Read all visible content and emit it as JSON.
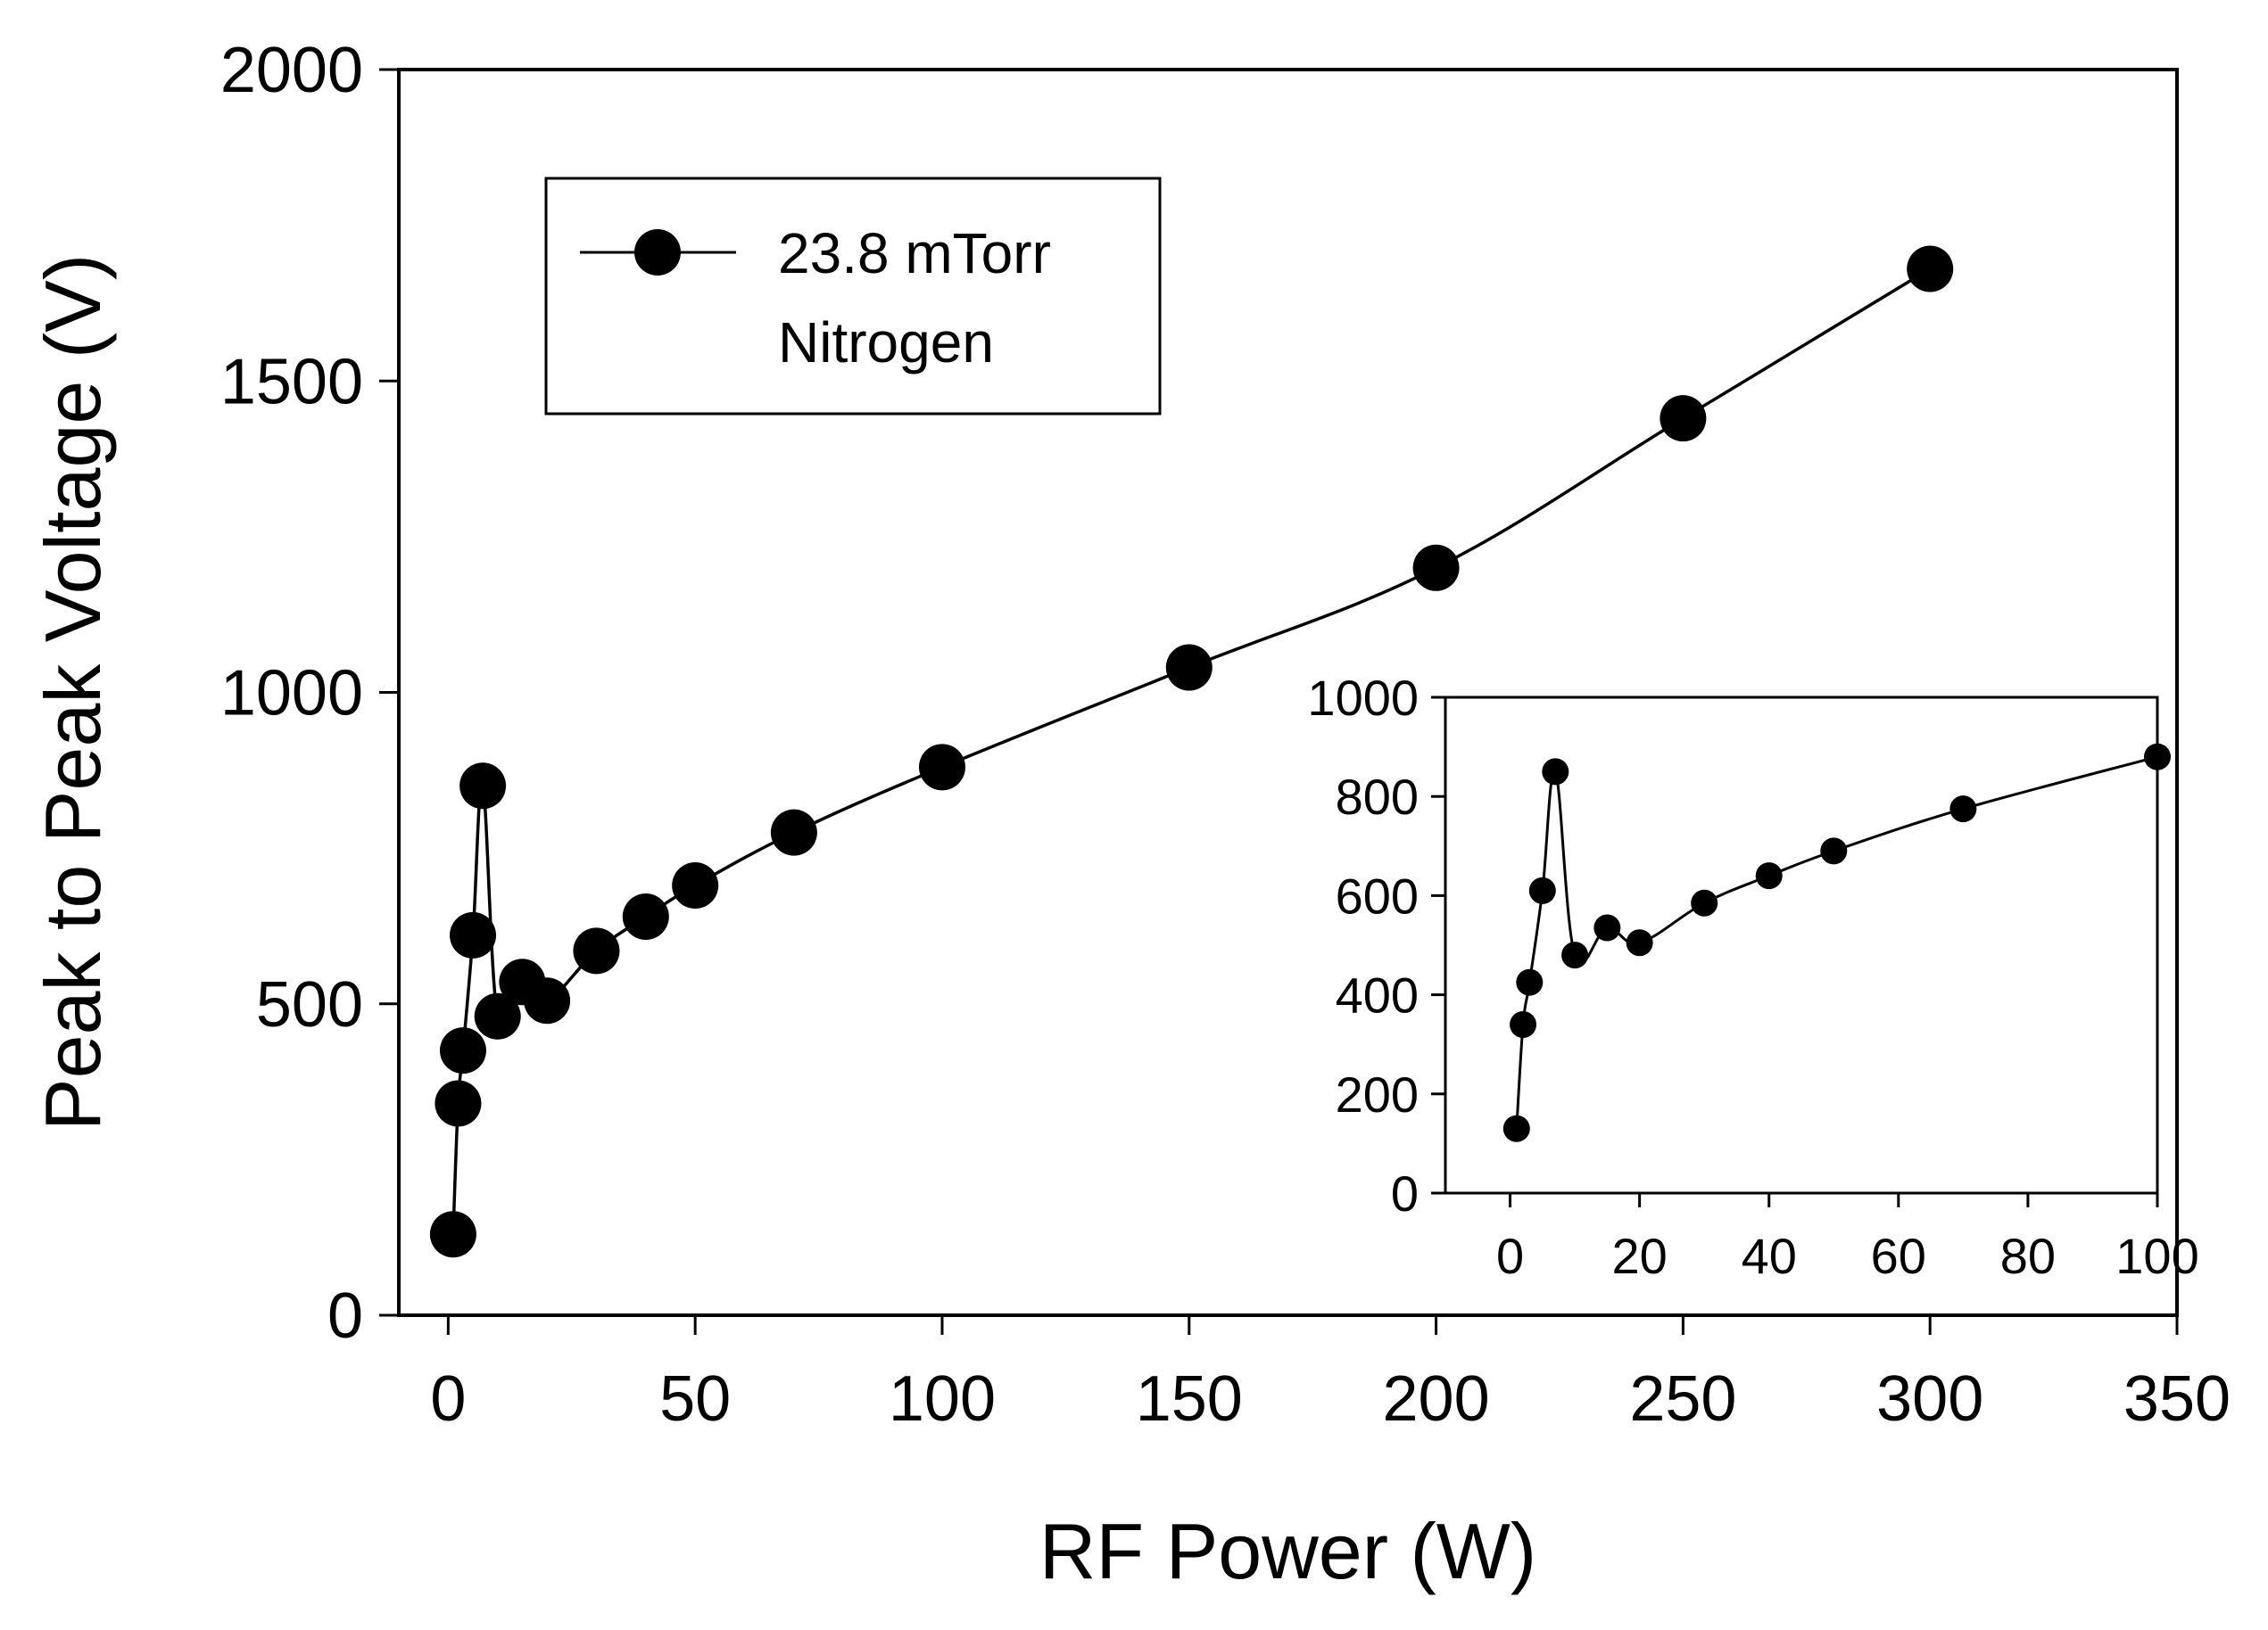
{
  "chart_data": [
    {
      "type": "line",
      "role": "main",
      "xlabel": "RF Power (W)",
      "ylabel": "Peak to Peak Voltage (V)",
      "xlim": [
        -10,
        350
      ],
      "ylim": [
        0,
        2000
      ],
      "xticks": [
        0,
        50,
        100,
        150,
        200,
        250,
        300,
        350
      ],
      "yticks": [
        0,
        500,
        1000,
        1500,
        2000
      ],
      "grid": false,
      "legend": {
        "position": "top-left",
        "entries": [
          "23.8 mTorr",
          "Nitrogen"
        ]
      },
      "series": [
        {
          "name": "23.8 mTorr Nitrogen",
          "x": [
            1,
            2,
            3,
            5,
            7,
            10,
            15,
            20,
            30,
            40,
            50,
            70,
            100,
            150,
            200,
            250,
            300
          ],
          "y": [
            130,
            340,
            425,
            610,
            850,
            480,
            535,
            505,
            585,
            640,
            690,
            775,
            880,
            1040,
            1200,
            1440,
            1680
          ]
        }
      ]
    },
    {
      "type": "line",
      "role": "inset",
      "xlim": [
        -10,
        100
      ],
      "ylim": [
        0,
        1000
      ],
      "xticks": [
        0,
        20,
        40,
        60,
        80,
        100
      ],
      "yticks": [
        0,
        200,
        400,
        600,
        800,
        1000
      ],
      "grid": false,
      "series": [
        {
          "name": "23.8 mTorr Nitrogen",
          "x": [
            1,
            2,
            3,
            5,
            7,
            10,
            15,
            20,
            30,
            40,
            50,
            70,
            100
          ],
          "y": [
            130,
            340,
            425,
            610,
            850,
            480,
            535,
            505,
            585,
            640,
            690,
            775,
            880
          ]
        }
      ]
    }
  ]
}
